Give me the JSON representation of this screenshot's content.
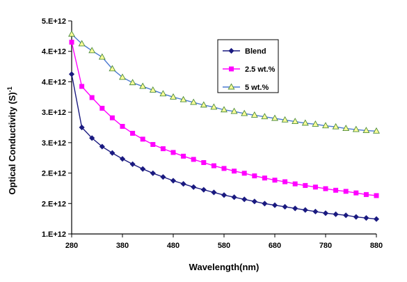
{
  "chart_data": {
    "type": "line",
    "xlabel": "Wavelength(nm)",
    "ylabel": "Optical Conductivity (S)",
    "ylabel_superscript": "-1",
    "xlim": [
      280,
      880
    ],
    "ylim_ticks_numeric": [
      1000000000000.0,
      5000000000000.0
    ],
    "x_ticks": [
      280,
      380,
      480,
      580,
      680,
      780,
      880
    ],
    "y_ticks": [
      "1.E+12",
      "2.E+12",
      "2.E+12",
      "3.E+12",
      "3.E+12",
      "4.E+12",
      "4.E+12",
      "5.E+12"
    ],
    "grid": false,
    "legend_position": "top-right",
    "x": [
      280,
      300,
      320,
      340,
      360,
      380,
      400,
      420,
      440,
      460,
      480,
      500,
      520,
      540,
      560,
      580,
      600,
      620,
      640,
      660,
      680,
      700,
      720,
      740,
      760,
      780,
      800,
      820,
      840,
      860,
      880
    ],
    "series": [
      {
        "name": "Blend",
        "color": "#1a1a80",
        "marker": "diamond",
        "values": [
          4.0,
          3.0,
          2.8,
          2.64,
          2.52,
          2.41,
          2.31,
          2.22,
          2.14,
          2.07,
          2.0,
          1.94,
          1.88,
          1.83,
          1.78,
          1.73,
          1.69,
          1.65,
          1.61,
          1.57,
          1.54,
          1.51,
          1.48,
          1.45,
          1.42,
          1.39,
          1.37,
          1.35,
          1.32,
          1.3,
          1.28
        ]
      },
      {
        "name": "2.5 wt.%",
        "color": "#ff00ff",
        "marker": "square",
        "values": [
          4.6,
          3.77,
          3.56,
          3.36,
          3.18,
          3.02,
          2.89,
          2.78,
          2.68,
          2.6,
          2.53,
          2.46,
          2.4,
          2.34,
          2.28,
          2.23,
          2.18,
          2.14,
          2.09,
          2.05,
          2.01,
          1.98,
          1.94,
          1.91,
          1.88,
          1.85,
          1.82,
          1.8,
          1.77,
          1.74,
          1.72
        ]
      },
      {
        "name": "5 wt.%",
        "color": "#4a78d0",
        "marker": "triangle",
        "values": [
          4.75,
          4.57,
          4.44,
          4.32,
          4.1,
          3.94,
          3.84,
          3.77,
          3.7,
          3.63,
          3.57,
          3.52,
          3.47,
          3.42,
          3.38,
          3.33,
          3.3,
          3.26,
          3.23,
          3.2,
          3.17,
          3.14,
          3.11,
          3.08,
          3.06,
          3.03,
          3.01,
          2.98,
          2.96,
          2.94,
          2.93
        ]
      }
    ]
  }
}
